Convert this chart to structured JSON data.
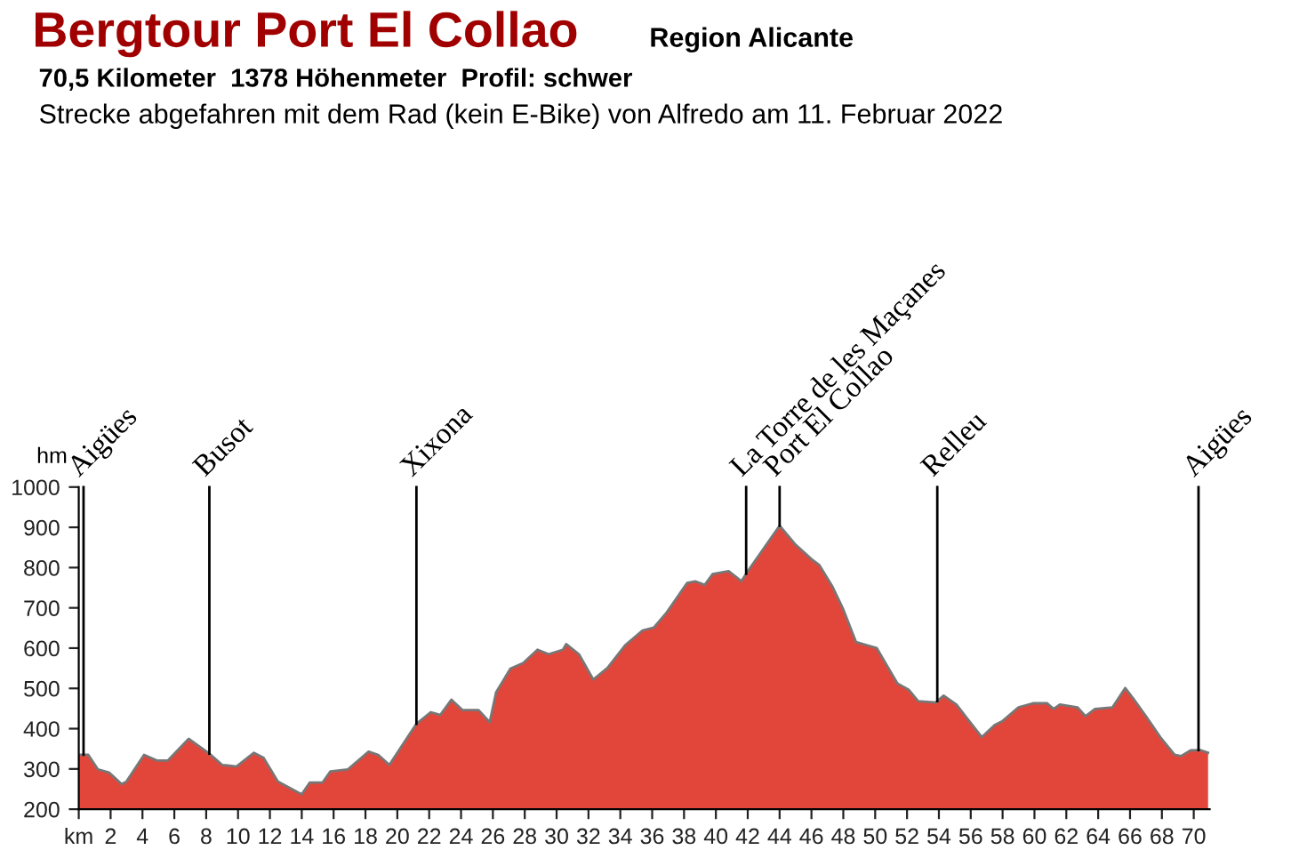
{
  "chart_data": {
    "type": "area",
    "title": "Bergtour Port El Collao",
    "subtitle": "Region Alicante",
    "annotations": [
      "70,5 Kilometer  1378 Höhenmeter  Profil: schwer",
      "Strecke abgefahren mit dem Rad (kein E-Bike) von Alfredo am 11. Februar 2022"
    ],
    "ylabel": "hm",
    "x": [
      0,
      0.6,
      1.2,
      1.9,
      2.7,
      3.0,
      4.1,
      4.9,
      5.6,
      6.9,
      8.2,
      9.0,
      9.9,
      11.0,
      11.6,
      12.5,
      13.2,
      14.0,
      14.5,
      15.3,
      15.8,
      16.9,
      18.2,
      18.8,
      19.5,
      21.2,
      22.1,
      22.7,
      23.4,
      24.1,
      25.1,
      25.8,
      26.2,
      27.1,
      27.9,
      28.8,
      29.5,
      30.4,
      30.6,
      31.4,
      32.3,
      33.2,
      34.3,
      35.4,
      36.1,
      36.9,
      38.2,
      38.7,
      39.3,
      39.8,
      40.8,
      41.3,
      41.6,
      42.0,
      44.0,
      45.0,
      46.0,
      46.5,
      47.3,
      48.0,
      48.8,
      49.5,
      50.1,
      51.4,
      52.1,
      52.7,
      53.8,
      54.3,
      55.1,
      55.8,
      56.7,
      57.5,
      58.0,
      59.0,
      59.9,
      60.8,
      61.2,
      61.6,
      62.7,
      63.2,
      63.8,
      64.9,
      65.7,
      66.2,
      67.0,
      67.9,
      68.8,
      69.2,
      69.8,
      70.4,
      70.9
    ],
    "series": [
      {
        "color": "#e2463a",
        "values": [
          335,
          335,
          299,
          291,
          262,
          269,
          335,
          321,
          321,
          375,
          338,
          310,
          306,
          340,
          328,
          269,
          254,
          237,
          266,
          266,
          294,
          299,
          343,
          335,
          310,
          412,
          441,
          434,
          472,
          446,
          446,
          416,
          490,
          549,
          563,
          596,
          585,
          596,
          610,
          585,
          522,
          551,
          607,
          644,
          651,
          688,
          762,
          766,
          757,
          784,
          791,
          776,
          766,
          791,
          904,
          857,
          821,
          806,
          754,
          696,
          615,
          607,
          600,
          512,
          497,
          468,
          465,
          482,
          460,
          424,
          379,
          409,
          419,
          453,
          463,
          463,
          449,
          460,
          453,
          431,
          449,
          453,
          501,
          475,
          431,
          379,
          335,
          332,
          346,
          347,
          340
        ]
      }
    ],
    "xlim": [
      0,
      71
    ],
    "ylim": [
      200,
      1000
    ],
    "xticks": [
      {
        "value": 0,
        "label": "km"
      },
      2,
      4,
      6,
      8,
      10,
      12,
      14,
      16,
      18,
      20,
      22,
      24,
      26,
      28,
      30,
      32,
      34,
      36,
      38,
      40,
      42,
      44,
      46,
      48,
      50,
      52,
      54,
      56,
      58,
      60,
      62,
      64,
      66,
      68,
      70
    ],
    "yticks": [
      200,
      300,
      400,
      500,
      600,
      700,
      800,
      900,
      1000
    ],
    "ref_lines": [
      {
        "axis": "x",
        "value": 0.3,
        "label": "Aigües"
      },
      {
        "axis": "x",
        "value": 8.2,
        "label": "Busot"
      },
      {
        "axis": "x",
        "value": 21.2,
        "label": "Xixona"
      },
      {
        "axis": "x",
        "value": 41.9,
        "label": "La Torre de les Maçanes"
      },
      {
        "axis": "x",
        "value": 44.0,
        "label": "Port El Collao"
      },
      {
        "axis": "x",
        "value": 53.9,
        "label": "Relleu"
      },
      {
        "axis": "x",
        "value": 70.3,
        "label": "Aigües"
      }
    ],
    "grid": false,
    "legend": false
  }
}
